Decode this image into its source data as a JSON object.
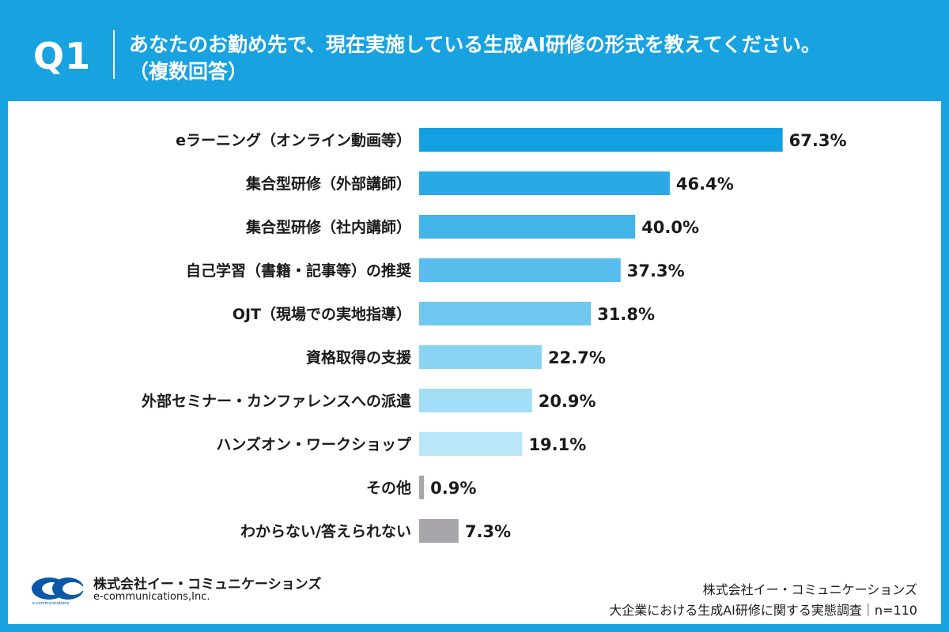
{
  "header": {
    "q_label": "Q1",
    "question_line1": "あなたのお勤め先で、現在実施している生成AI研修の形式を教えてください。",
    "question_line2": "（複数回答）"
  },
  "chart_data": {
    "type": "bar",
    "orientation": "horizontal",
    "categories": [
      "eラーニング（オンライン動画等）",
      "集合型研修（外部講師）",
      "集合型研修（社内講師）",
      "自己学習（書籍・記事等）の推奨",
      "OJT（現場での実地指導）",
      "資格取得の支援",
      "外部セミナー・カンファレンスへの派遣",
      "ハンズオン・ワークショップ",
      "その他",
      "わからない/答えられない"
    ],
    "values": [
      67.3,
      46.4,
      40.0,
      37.3,
      31.8,
      22.7,
      20.9,
      19.1,
      0.9,
      7.3
    ],
    "value_labels": [
      "67.3%",
      "46.4%",
      "40.0%",
      "37.3%",
      "31.8%",
      "22.7%",
      "20.9%",
      "19.1%",
      "0.9%",
      "7.3%"
    ],
    "colors": [
      "#13a0e3",
      "#2aa9e6",
      "#42b4ea",
      "#58bded",
      "#6ec8f0",
      "#89d4f3",
      "#a2def6",
      "#bae7f8",
      "#a8a6aa",
      "#a8a6aa"
    ],
    "xlim": [
      0,
      100
    ],
    "grid": false,
    "legend": "none"
  },
  "footer": {
    "logo_jp": "株式会社イー・コミュニケーションズ",
    "logo_en": "e-communications,Inc.",
    "logo_mark_text": "e-communications",
    "source_line1": "株式会社イー・コミュニケーションズ",
    "source_line2": "大企業における生成AI研修に関する実態調査｜n=110"
  }
}
